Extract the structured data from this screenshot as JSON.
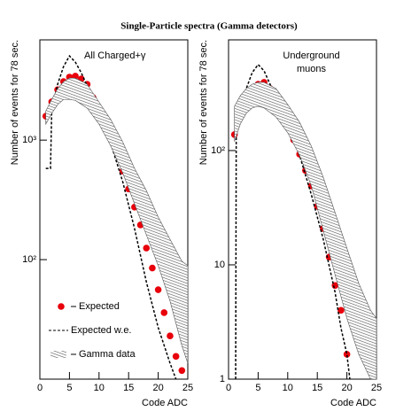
{
  "title": "Single-Particle spectra (Gamma detectors)",
  "chart_data": [
    {
      "type": "line",
      "log_y": true,
      "annotation": [
        "All Charged+γ"
      ],
      "xlabel": "Code ADC",
      "ylabel": "Number of events for 78 sec.",
      "xlim": [
        0,
        25
      ],
      "xticks": [
        0,
        5,
        10,
        15,
        20,
        25
      ],
      "ylim": [
        10,
        6900
      ],
      "yticks": [
        {
          "value": 100,
          "label": "10²"
        },
        {
          "value": 1000,
          "label": "10³"
        }
      ],
      "legend": "lower left",
      "series": [
        {
          "name": "Expected",
          "style": "points",
          "color": "#e8000b",
          "x": [
            1,
            2,
            3,
            4,
            5,
            6,
            7,
            8,
            9,
            10,
            11,
            12,
            13,
            14,
            15,
            16,
            17,
            18,
            19,
            20,
            21,
            22,
            23,
            24
          ],
          "values": [
            1585,
            2090,
            2640,
            3090,
            3370,
            3430,
            3250,
            2930,
            2270,
            1820,
            1410,
            1050,
            790,
            550,
            390,
            275,
            195,
            125,
            85,
            56,
            36,
            23,
            15.5,
            11.8
          ]
        },
        {
          "name": "Expected w.e.",
          "style": "dashed",
          "color": "#000000",
          "x": [
            1,
            1.8,
            2,
            3,
            4,
            5,
            6,
            7,
            8,
            10,
            12,
            14,
            16,
            18,
            20,
            22,
            23
          ],
          "values": [
            580,
            580,
            1750,
            2930,
            4120,
            5060,
            4490,
            3660,
            2830,
            1670,
            933,
            449,
            182,
            65,
            27,
            13.6,
            10
          ]
        },
        {
          "name": "Gamma data",
          "style": "band",
          "color": "#555555",
          "x": [
            1,
            2,
            3,
            4,
            5,
            6,
            8,
            10,
            12,
            14,
            16,
            18,
            20,
            22,
            24,
            25
          ],
          "low": [
            1360,
            1670,
            1980,
            2190,
            2190,
            2150,
            1850,
            1360,
            888,
            532,
            293,
            161,
            89,
            45,
            19,
            13.6
          ],
          "high": [
            1750,
            2190,
            2690,
            3080,
            3300,
            3300,
            2930,
            2080,
            1480,
            967,
            580,
            378,
            227,
            148,
            97,
            89
          ]
        }
      ]
    },
    {
      "type": "line",
      "log_y": true,
      "annotation": [
        "Underground",
        "muons"
      ],
      "xlabel": "Code ADC",
      "ylabel": "Number of events for 78 sec.",
      "xlim": [
        0,
        25
      ],
      "xticks": [
        0,
        5,
        10,
        15,
        20,
        25
      ],
      "ylim": [
        1,
        930
      ],
      "yticks": [
        1,
        10,
        {
          "value": 100,
          "label": "10²"
        }
      ],
      "series": [
        {
          "name": "Expected",
          "style": "points",
          "color": "#e8000b",
          "x": [
            1,
            2,
            3,
            4,
            5,
            6,
            7,
            8,
            9,
            10,
            11,
            12,
            13,
            14,
            15,
            16,
            17,
            18,
            19,
            20
          ],
          "values": [
            138,
            215,
            282,
            349,
            381,
            395,
            349,
            282,
            215,
            168,
            124,
            93,
            67,
            49,
            32.5,
            20.8,
            11.7,
            6.6,
            4.0,
            1.65
          ]
        },
        {
          "name": "Expected w.e.",
          "style": "dashed",
          "color": "#000000",
          "x": [
            1.2,
            1.3,
            2,
            3,
            4,
            5,
            6,
            8,
            10,
            12,
            14,
            16,
            18,
            19,
            20,
            20.5
          ],
          "values": [
            1,
            143,
            223,
            349,
            481,
            565,
            499,
            292,
            171,
            91,
            41,
            16.8,
            5.75,
            2.8,
            1.65,
            1
          ]
        },
        {
          "name": "Gamma data",
          "style": "band",
          "color": "#555555",
          "x": [
            1,
            2,
            3,
            4,
            5,
            6,
            8,
            10,
            12,
            14,
            16,
            18,
            20,
            22,
            24,
            25
          ],
          "low": [
            120,
            171,
            212,
            236,
            244,
            236,
            197,
            143,
            91,
            49,
            20,
            8.2,
            3.4,
            1.65,
            1,
            1
          ],
          "high": [
            244,
            303,
            349,
            381,
            395,
            395,
            349,
            253,
            177,
            109,
            58.5,
            28.7,
            14.0,
            6.9,
            4.0,
            3.4
          ]
        }
      ]
    }
  ]
}
